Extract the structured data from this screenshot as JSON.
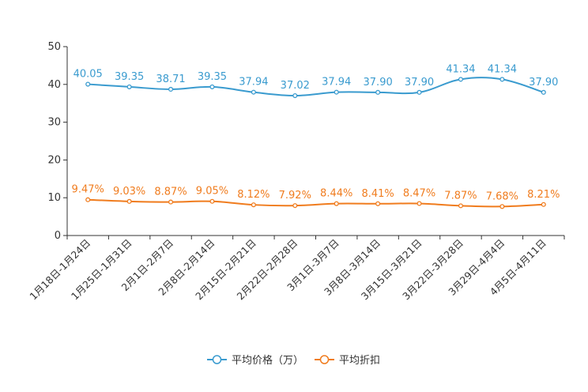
{
  "chart_data": {
    "type": "line",
    "categories": [
      "1月18日-1月24日",
      "1月25日-1月31日",
      "2月1日-2月7日",
      "2月8日-2月14日",
      "2月15日-2月21日",
      "2月22日-2月28日",
      "3月1日-3月7日",
      "3月8日-3月14日",
      "3月15日-3月21日",
      "3月22日-3月28日",
      "3月29日-4月4日",
      "4月5日-4月11日"
    ],
    "ylim": [
      0,
      50
    ],
    "yticks": [
      0,
      10,
      20,
      30,
      40,
      50
    ],
    "series": [
      {
        "name": "平均价格（万）",
        "color": "#3a9bcf",
        "values": [
          40.05,
          39.35,
          38.71,
          39.35,
          37.94,
          37.02,
          37.94,
          37.9,
          37.9,
          41.34,
          41.34,
          37.9
        ],
        "labels": [
          "40.05",
          "39.35",
          "38.71",
          "39.35",
          "37.94",
          "37.02",
          "37.94",
          "37.90",
          "37.90",
          "41.34",
          "41.34",
          "37.90"
        ]
      },
      {
        "name": "平均折扣",
        "color": "#f07c1e",
        "values": [
          9.47,
          9.03,
          8.87,
          9.05,
          8.12,
          7.92,
          8.44,
          8.41,
          8.47,
          7.87,
          7.68,
          8.21
        ],
        "labels": [
          "9.47%",
          "9.03%",
          "8.87%",
          "9.05%",
          "8.12%",
          "7.92%",
          "8.44%",
          "8.41%",
          "8.47%",
          "7.87%",
          "7.68%",
          "8.21%"
        ]
      }
    ],
    "legend_position": "bottom-center",
    "grid": false
  }
}
